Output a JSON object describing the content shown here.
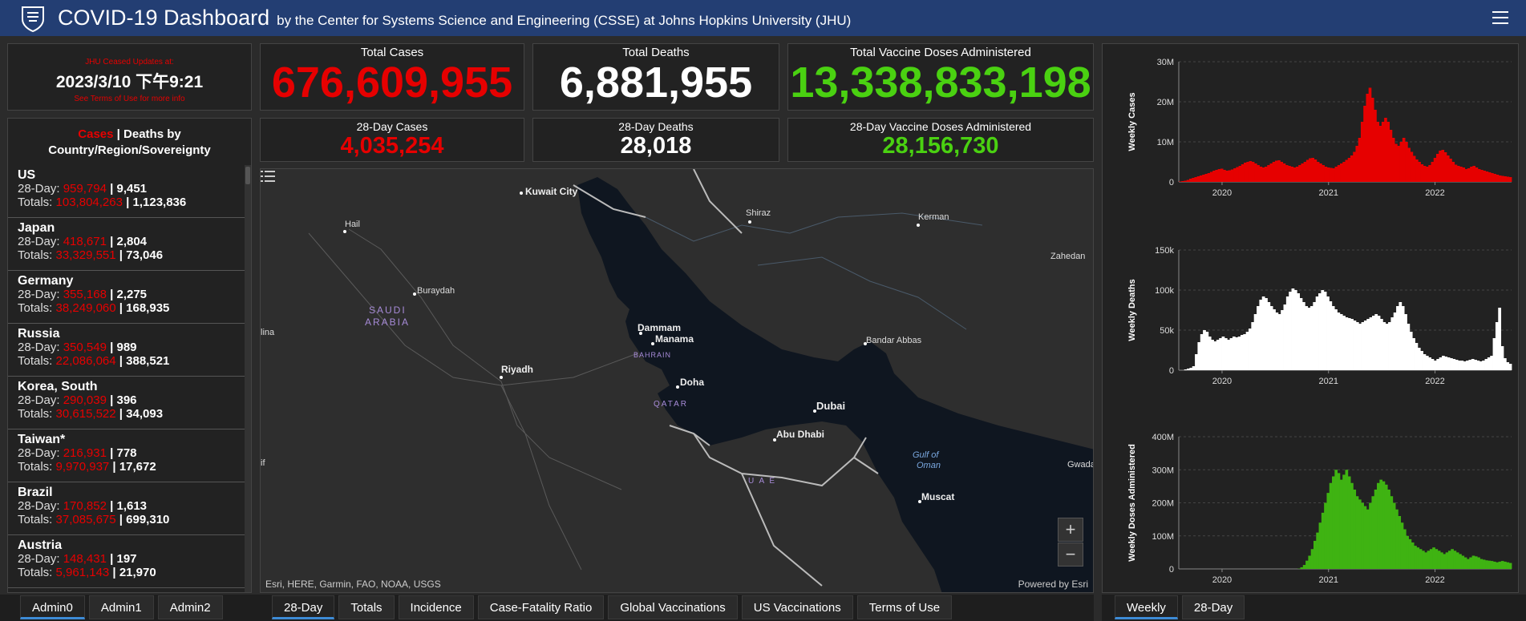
{
  "header": {
    "title": "COVID-19 Dashboard",
    "subtitle": "by the Center for Systems Science and Engineering (CSSE) at Johns Hopkins University (JHU)"
  },
  "ceased": {
    "label": "JHU Ceased Updates at:",
    "datetime": "2023/3/10 下午9:21",
    "terms": "See Terms of Use for more info"
  },
  "stats": {
    "total_cases_label": "Total Cases",
    "total_cases": "676,609,955",
    "total_deaths_label": "Total Deaths",
    "total_deaths": "6,881,955",
    "total_vaccine_label": "Total Vaccine Doses Administered",
    "total_vaccine": "13,338,833,198",
    "cases28_label": "28-Day Cases",
    "cases28": "4,035,254",
    "deaths28_label": "28-Day Deaths",
    "deaths28": "28,018",
    "vaccine28_label": "28-Day Vaccine Doses Administered",
    "vaccine28": "28,156,730"
  },
  "list": {
    "title_cases": "Cases",
    "title_sep": " | ",
    "title_rest": "Deaths by",
    "title_line2": "Country/Region/Sovereignty",
    "day28_prefix": "28-Day: ",
    "totals_prefix": "Totals: ",
    "bar": " | ",
    "items": [
      {
        "name": "US",
        "c28": "959,794",
        "d28": "9,451",
        "ct": "103,804,263",
        "dt": "1,123,836"
      },
      {
        "name": "Japan",
        "c28": "418,671",
        "d28": "2,804",
        "ct": "33,329,551",
        "dt": "73,046"
      },
      {
        "name": "Germany",
        "c28": "355,168",
        "d28": "2,275",
        "ct": "38,249,060",
        "dt": "168,935"
      },
      {
        "name": "Russia",
        "c28": "350,549",
        "d28": "989",
        "ct": "22,086,064",
        "dt": "388,521"
      },
      {
        "name": "Korea, South",
        "c28": "290,039",
        "d28": "396",
        "ct": "30,615,522",
        "dt": "34,093"
      },
      {
        "name": "Taiwan*",
        "c28": "216,931",
        "d28": "778",
        "ct": "9,970,937",
        "dt": "17,672"
      },
      {
        "name": "Brazil",
        "c28": "170,852",
        "d28": "1,613",
        "ct": "37,085,675",
        "dt": "699,310"
      },
      {
        "name": "Austria",
        "c28": "148,431",
        "d28": "197",
        "ct": "5,961,143",
        "dt": "21,970"
      }
    ]
  },
  "map": {
    "attribution": "Esri, HERE, Garmin, FAO, NOAA, USGS",
    "powered": "Powered by Esri",
    "zoom_in": "+",
    "zoom_out": "−",
    "labels": {
      "kuwait": "Kuwait City",
      "shiraz": "Shiraz",
      "kerman": "Kerman",
      "hail": "Hail",
      "buraydah": "Buraydah",
      "saudi1": "SAUDI",
      "saudi2": "ARABIA",
      "zahedan": "Zahedan",
      "dammam": "Dammam",
      "manama": "Manama",
      "bahrain": "BAHRAIN",
      "bandar": "Bandar Abbas",
      "riyadh": "Riyadh",
      "doha": "Doha",
      "qatar": "QATAR",
      "dubai": "Dubai",
      "abudhabi": "Abu Dhabi",
      "uae": "U A E",
      "gulf1": "Gulf of",
      "gulf2": "Oman",
      "muscat": "Muscat",
      "gwada": "Gwada",
      "ilna": "lina",
      "if": "if"
    }
  },
  "chart_data": [
    {
      "type": "bar",
      "title": "",
      "ylabel": "Weekly Cases",
      "color": "#e60000",
      "ylim": [
        0,
        30000000
      ],
      "yticks": [
        "0",
        "10M",
        "20M",
        "30M"
      ],
      "xticks": [
        "2020",
        "2021",
        "2022"
      ],
      "values": [
        0.1,
        0.2,
        0.3,
        0.5,
        0.8,
        1.0,
        1.2,
        1.4,
        1.6,
        1.8,
        2.0,
        2.2,
        2.5,
        2.8,
        3.0,
        3.2,
        3.3,
        3.0,
        2.8,
        2.9,
        3.1,
        3.4,
        3.7,
        4.0,
        4.4,
        4.8,
        5.0,
        5.2,
        5.0,
        4.6,
        4.2,
        3.8,
        3.6,
        3.8,
        4.2,
        4.6,
        5.0,
        5.3,
        5.4,
        5.0,
        4.6,
        4.2,
        4.0,
        3.8,
        3.6,
        3.8,
        4.2,
        4.6,
        5.0,
        5.5,
        5.9,
        6.0,
        5.6,
        5.0,
        4.6,
        4.2,
        3.8,
        3.6,
        3.5,
        3.4,
        3.8,
        4.2,
        4.6,
        5.0,
        5.5,
        6.0,
        6.6,
        7.5,
        9.0,
        11,
        15,
        19,
        22,
        23.5,
        21,
        18,
        15,
        14,
        15,
        16,
        15,
        13,
        11,
        9.5,
        9.0,
        10,
        11,
        10,
        8.5,
        7.5,
        6.5,
        5.6,
        5.0,
        4.4,
        4.0,
        3.8,
        4.2,
        5.0,
        6.0,
        7.0,
        7.8,
        8.0,
        7.4,
        6.6,
        5.8,
        5.0,
        4.3,
        4.0,
        3.8,
        3.6,
        3.2,
        3.4,
        3.8,
        4.0,
        3.6,
        3.2,
        3.0,
        2.8,
        2.6,
        2.4,
        2.2,
        2.0,
        1.8,
        1.6,
        1.5,
        1.4,
        1.3,
        1.2
      ]
    },
    {
      "type": "bar",
      "title": "",
      "ylabel": "Weekly Deaths",
      "color": "#ffffff",
      "ylim": [
        0,
        150000
      ],
      "yticks": [
        "0",
        "50k",
        "100k",
        "150k"
      ],
      "xticks": [
        "2020",
        "2021",
        "2022"
      ],
      "values": [
        0,
        0,
        1,
        2,
        3,
        5,
        20,
        35,
        45,
        50,
        48,
        42,
        38,
        36,
        38,
        40,
        42,
        40,
        38,
        40,
        42,
        41,
        42,
        44,
        45,
        48,
        52,
        60,
        70,
        80,
        88,
        92,
        90,
        85,
        80,
        76,
        72,
        70,
        75,
        82,
        92,
        98,
        102,
        100,
        96,
        90,
        85,
        80,
        78,
        80,
        85,
        92,
        96,
        100,
        98,
        92,
        86,
        80,
        76,
        72,
        70,
        68,
        66,
        65,
        64,
        62,
        60,
        58,
        60,
        62,
        64,
        66,
        68,
        70,
        68,
        64,
        60,
        58,
        60,
        66,
        72,
        80,
        85,
        80,
        70,
        58,
        48,
        40,
        34,
        28,
        24,
        20,
        18,
        16,
        14,
        12,
        14,
        16,
        18,
        17,
        16,
        15,
        14,
        13,
        12,
        12,
        11,
        12,
        13,
        14,
        13,
        12,
        11,
        12,
        14,
        16,
        18,
        40,
        60,
        78,
        30,
        15,
        10,
        8
      ]
    },
    {
      "type": "bar",
      "title": "",
      "ylabel": "Weekly Doses Administered",
      "color": "#3fb312",
      "ylim": [
        0,
        400000000
      ],
      "yticks": [
        "0",
        "100M",
        "200M",
        "300M",
        "400M"
      ],
      "xticks": [
        "2020",
        "2021",
        "2022"
      ],
      "values": [
        0,
        0,
        0,
        0,
        0,
        0,
        0,
        0,
        0,
        0,
        0,
        0,
        0,
        0,
        0,
        0,
        0,
        0,
        0,
        0,
        0,
        0,
        0,
        0,
        0,
        0,
        0,
        0,
        0,
        0,
        0,
        0,
        0,
        0,
        0,
        0,
        0,
        0,
        0,
        0,
        0,
        0,
        0,
        0,
        0,
        1,
        5,
        12,
        25,
        40,
        60,
        85,
        110,
        140,
        170,
        200,
        230,
        260,
        280,
        300,
        290,
        270,
        285,
        300,
        280,
        260,
        240,
        220,
        210,
        200,
        190,
        180,
        200,
        220,
        240,
        260,
        270,
        265,
        255,
        240,
        220,
        200,
        180,
        160,
        140,
        120,
        100,
        90,
        80,
        70,
        65,
        60,
        55,
        50,
        55,
        60,
        65,
        60,
        55,
        50,
        45,
        50,
        55,
        60,
        55,
        50,
        45,
        40,
        35,
        30,
        35,
        40,
        38,
        35,
        30,
        28,
        26,
        25,
        24,
        22,
        20,
        22,
        24,
        22,
        20,
        18
      ]
    }
  ],
  "tabs_left": [
    "Admin0",
    "Admin1",
    "Admin2"
  ],
  "tabs_mid": [
    "28-Day",
    "Totals",
    "Incidence",
    "Case-Fatality Ratio",
    "Global Vaccinations",
    "US Vaccinations",
    "Terms of Use"
  ],
  "tabs_right": [
    "Weekly",
    "28-Day"
  ]
}
